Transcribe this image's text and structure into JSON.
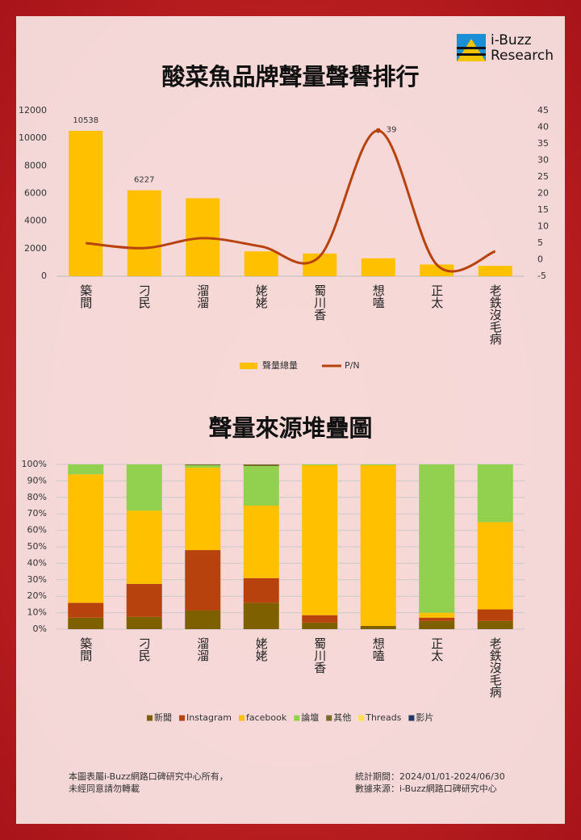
{
  "logo": {
    "line1": "i-Buzz",
    "line2": "Research"
  },
  "chart_data": [
    {
      "type": "bar_line",
      "title": "酸菜魚品牌聲量聲譽排行",
      "categories": [
        "築間",
        "刁民",
        "溜溜",
        "姥姥",
        "蜀川香",
        "想嗑",
        "正太",
        "老鉄沒毛病"
      ],
      "series": [
        {
          "name": "聲量總量",
          "type": "bar",
          "color": "#ffc000",
          "values": [
            10538,
            6227,
            5650,
            1800,
            1650,
            1300,
            850,
            750
          ],
          "value_labels": [
            "10538",
            "6227",
            null,
            null,
            null,
            null,
            null,
            null
          ]
        },
        {
          "name": "P/N",
          "type": "line",
          "axis": "y2",
          "color": "#b8420e",
          "values": [
            5,
            3.5,
            6.5,
            4,
            1,
            39,
            -1.5,
            2.5
          ],
          "value_labels": [
            null,
            null,
            null,
            null,
            null,
            "39",
            null,
            null
          ]
        }
      ],
      "ylim": [
        0,
        12000
      ],
      "yticks": [
        0,
        2000,
        4000,
        6000,
        8000,
        10000,
        12000
      ],
      "y2lim": [
        -5,
        45
      ],
      "y2ticks": [
        -5,
        0,
        5,
        10,
        15,
        20,
        25,
        30,
        35,
        40,
        45
      ],
      "legend": "bottom"
    },
    {
      "type": "stacked_bar",
      "title": "聲量來源堆疊圖",
      "categories": [
        "築間",
        "刁民",
        "溜溜",
        "姥姥",
        "蜀川香",
        "想嗑",
        "正太",
        "老鉄沒毛病"
      ],
      "series": [
        {
          "name": "新聞",
          "color": "#7f6000",
          "values": [
            7,
            7.5,
            11.5,
            16,
            4,
            2,
            5,
            5
          ]
        },
        {
          "name": "Instagram",
          "color": "#b8420e",
          "values": [
            9,
            20,
            36.5,
            15,
            4.5,
            0,
            2,
            7
          ]
        },
        {
          "name": "facebook",
          "color": "#ffc000",
          "values": [
            78,
            44.5,
            50,
            44,
            91,
            97.5,
            3,
            53
          ]
        },
        {
          "name": "論壇",
          "color": "#92d050",
          "values": [
            6,
            28,
            1.5,
            24,
            0.5,
            0.5,
            90,
            35
          ]
        },
        {
          "name": "其他",
          "color": "#7a6a2c",
          "values": [
            0,
            0,
            0.5,
            1,
            0,
            0,
            0,
            0
          ]
        },
        {
          "name": "Threads",
          "color": "#ffe14d",
          "values": [
            0,
            0,
            0,
            0,
            0,
            0,
            0,
            0
          ]
        },
        {
          "name": "影片",
          "color": "#1f3864",
          "values": [
            0,
            0,
            0,
            0,
            0,
            0,
            0,
            0
          ]
        }
      ],
      "ylim": [
        0,
        100
      ],
      "yticks": [
        {
          "value": 0,
          "label": "0%"
        },
        {
          "value": 10,
          "label": "10%"
        },
        {
          "value": 20,
          "label": "20%"
        },
        {
          "value": 30,
          "label": "30%"
        },
        {
          "value": 40,
          "label": "40%"
        },
        {
          "value": 50,
          "label": "50%"
        },
        {
          "value": 60,
          "label": "60%"
        },
        {
          "value": 70,
          "label": "70%"
        },
        {
          "value": 80,
          "label": "80%"
        },
        {
          "value": 90,
          "label": "90%"
        },
        {
          "value": 100,
          "label": "100%"
        }
      ],
      "grid": true,
      "legend": "bottom"
    }
  ],
  "footer": {
    "left": [
      "本圖表屬i-Buzz網路口碑研究中心所有，",
      "未經同意請勿轉載"
    ],
    "right": [
      "統計期間：2024/01/01-2024/06/30",
      "數據來源：i-Buzz網路口碑研究中心"
    ]
  }
}
